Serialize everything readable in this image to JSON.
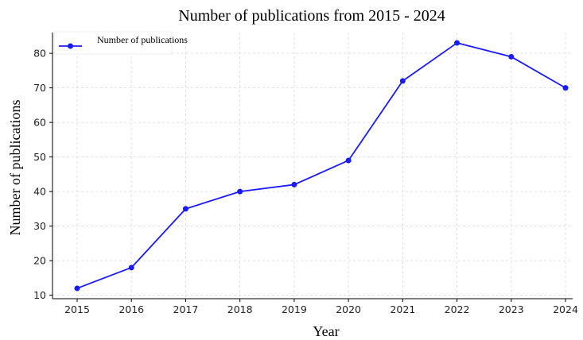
{
  "chart_data": {
    "type": "line",
    "title": "Number of publications from 2015 - 2024",
    "xlabel": "Year",
    "ylabel": "Number of publications",
    "x": [
      "2015",
      "2016",
      "2017",
      "2018",
      "2019",
      "2020",
      "2021",
      "2022",
      "2023",
      "2024"
    ],
    "series": [
      {
        "name": "Number of publications",
        "values": [
          12,
          18,
          35,
          40,
          42,
          49,
          72,
          83,
          79,
          70
        ],
        "color": "#1a1aff"
      }
    ],
    "yticks": [
      10,
      20,
      30,
      40,
      50,
      60,
      70,
      80
    ],
    "ylim": [
      9,
      86
    ],
    "grid": true,
    "legend_position": "top-left"
  }
}
